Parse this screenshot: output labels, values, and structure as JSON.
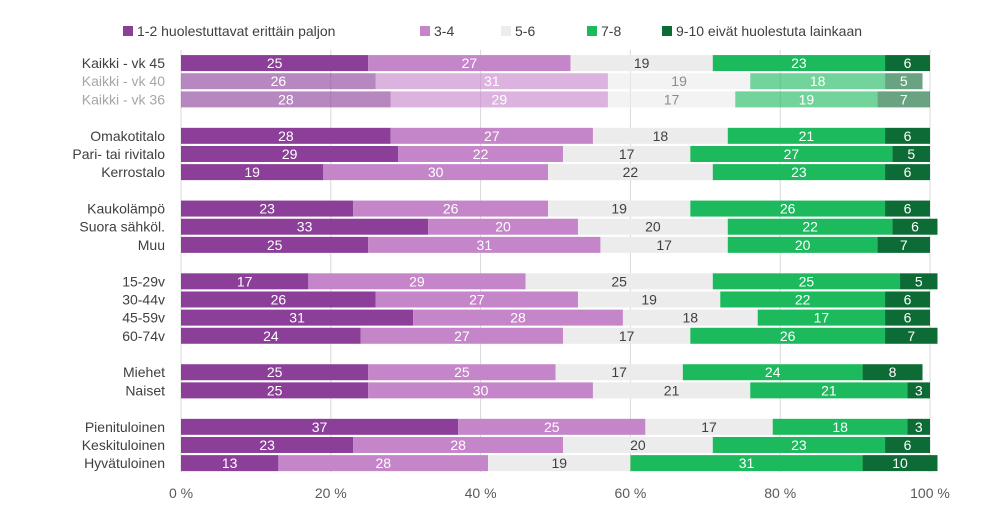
{
  "chart_data": {
    "type": "bar",
    "orientation": "horizontal",
    "stacked": "percent",
    "series": [
      {
        "name": "1-2 huolestuttavat erittäin paljon",
        "color": "#8b3f98"
      },
      {
        "name": "3-4",
        "color": "#c585c9"
      },
      {
        "name": "5-6",
        "color": "#ececec"
      },
      {
        "name": "7-8",
        "color": "#1cb95d"
      },
      {
        "name": "9-10 eivät huolestuta lainkaan",
        "color": "#0d6b35"
      }
    ],
    "groups": [
      {
        "rows": [
          {
            "label": "Kaikki - vk 45",
            "values": [
              25,
              27,
              19,
              23,
              6
            ],
            "faded": false
          },
          {
            "label": "Kaikki - vk 40",
            "values": [
              26,
              31,
              19,
              18,
              5
            ],
            "faded": true
          },
          {
            "label": "Kaikki - vk 36",
            "values": [
              28,
              29,
              17,
              19,
              7
            ],
            "faded": true
          }
        ]
      },
      {
        "rows": [
          {
            "label": "Omakotitalo",
            "values": [
              28,
              27,
              18,
              21,
              6
            ],
            "faded": false
          },
          {
            "label": "Pari- tai rivitalo",
            "values": [
              29,
              22,
              17,
              27,
              5
            ],
            "faded": false
          },
          {
            "label": "Kerrostalo",
            "values": [
              19,
              30,
              22,
              23,
              6
            ],
            "faded": false
          }
        ]
      },
      {
        "rows": [
          {
            "label": "Kaukolämpö",
            "values": [
              23,
              26,
              19,
              26,
              6
            ],
            "faded": false
          },
          {
            "label": "Suora sähköl.",
            "values": [
              33,
              20,
              20,
              22,
              6
            ],
            "faded": false
          },
          {
            "label": "Muu",
            "values": [
              25,
              31,
              17,
              20,
              7
            ],
            "faded": false
          }
        ]
      },
      {
        "rows": [
          {
            "label": "15-29v",
            "values": [
              17,
              29,
              25,
              25,
              5
            ],
            "faded": false
          },
          {
            "label": "30-44v",
            "values": [
              26,
              27,
              19,
              22,
              6
            ],
            "faded": false
          },
          {
            "label": "45-59v",
            "values": [
              31,
              28,
              18,
              17,
              6
            ],
            "faded": false
          },
          {
            "label": "60-74v",
            "values": [
              24,
              27,
              17,
              26,
              7
            ],
            "faded": false
          }
        ]
      },
      {
        "rows": [
          {
            "label": "Miehet",
            "values": [
              25,
              25,
              17,
              24,
              8
            ],
            "faded": false
          },
          {
            "label": "Naiset",
            "values": [
              25,
              30,
              21,
              21,
              3
            ],
            "faded": false
          }
        ]
      },
      {
        "rows": [
          {
            "label": "Pienituloinen",
            "values": [
              37,
              25,
              17,
              18,
              3
            ],
            "faded": false
          },
          {
            "label": "Keskituloinen",
            "values": [
              23,
              28,
              20,
              23,
              6
            ],
            "faded": false
          },
          {
            "label": "Hyvätuloinen",
            "values": [
              13,
              28,
              19,
              31,
              10
            ],
            "faded": false
          }
        ]
      }
    ],
    "xlim": [
      0,
      100
    ],
    "xticks": [
      "0 %",
      "20 %",
      "40 %",
      "60 %",
      "80 %",
      "100 %"
    ],
    "grid": true,
    "legend_position": "top"
  }
}
